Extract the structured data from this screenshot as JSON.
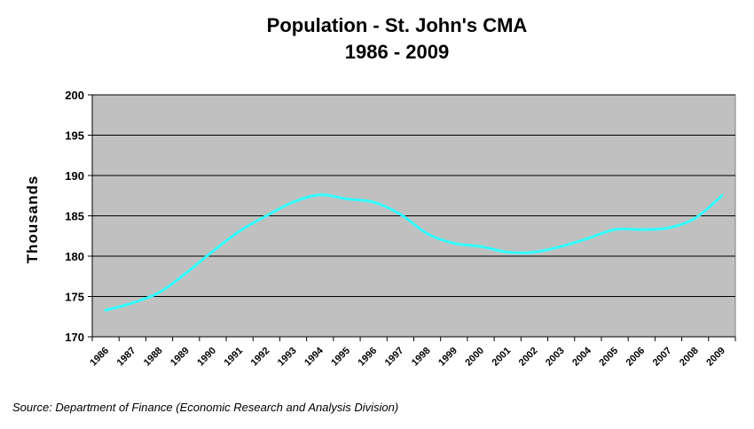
{
  "chart_data": {
    "type": "line",
    "title": "Population - St. John's CMA",
    "subtitle": "1986 - 2009",
    "xlabel": "",
    "ylabel": "Thousands",
    "ylim": [
      170,
      200
    ],
    "yticks": [
      170,
      175,
      180,
      185,
      190,
      195,
      200
    ],
    "grid": true,
    "legend": "none",
    "categories": [
      "1986",
      "1987",
      "1988",
      "1989",
      "1990",
      "1991",
      "1992",
      "1993",
      "1994",
      "1995",
      "1996",
      "1997",
      "1998",
      "1999",
      "2000",
      "2001",
      "2002",
      "2003",
      "2004",
      "2005",
      "2006",
      "2007",
      "2008",
      "2009"
    ],
    "series": [
      {
        "name": "Population",
        "values": [
          173.3,
          174.2,
          175.5,
          177.9,
          180.6,
          183.1,
          185.0,
          186.7,
          187.6,
          187.1,
          186.7,
          185.2,
          182.8,
          181.6,
          181.2,
          180.5,
          180.5,
          181.2,
          182.2,
          183.3,
          183.3,
          183.5,
          184.7,
          187.5
        ]
      }
    ],
    "colors": {
      "plot_background": "#c0c0c0",
      "line": "#33ffff",
      "grid": "#000000"
    }
  },
  "footer": {
    "source": "Source: Department of Finance (Economic Research and Analysis Division)"
  }
}
